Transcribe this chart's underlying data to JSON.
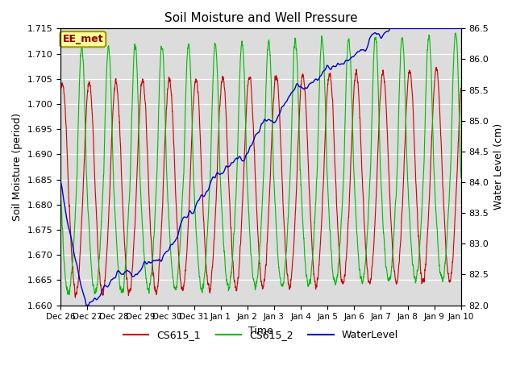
{
  "title": "Soil Moisture and Well Pressure",
  "ylabel_left": "Soil Moisture (period)",
  "ylabel_right": "Water Level (cm)",
  "xlabel": "Time",
  "ylim_left": [
    1.66,
    1.715
  ],
  "ylim_right": [
    82.0,
    86.5
  ],
  "annotation": "EE_met",
  "annotation_color": "#8B0000",
  "annotation_bg": "#FFFF99",
  "annotation_border": "#999900",
  "background_plot": "#DCDCDC",
  "grid_color": "#FFFFFF",
  "cs1_color": "#CC0000",
  "cs2_color": "#00BB00",
  "wl_color": "#0000CC",
  "legend_entries": [
    "CS615_1",
    "CS615_2",
    "WaterLevel"
  ],
  "x_tick_labels": [
    "Dec 26",
    "Dec 27",
    "Dec 28",
    "Dec 29",
    "Dec 30",
    "Dec 31",
    "Jan 1",
    "Jan 2",
    "Jan 3",
    "Jan 4",
    "Jan 5",
    "Jan 6",
    "Jan 7",
    "Jan 8",
    "Jan 9",
    "Jan 10"
  ],
  "yticks_left": [
    1.66,
    1.665,
    1.67,
    1.675,
    1.68,
    1.685,
    1.69,
    1.695,
    1.7,
    1.705,
    1.71,
    1.715
  ],
  "yticks_right": [
    82.0,
    82.5,
    83.0,
    83.5,
    84.0,
    84.5,
    85.0,
    85.5,
    86.0,
    86.5
  ]
}
